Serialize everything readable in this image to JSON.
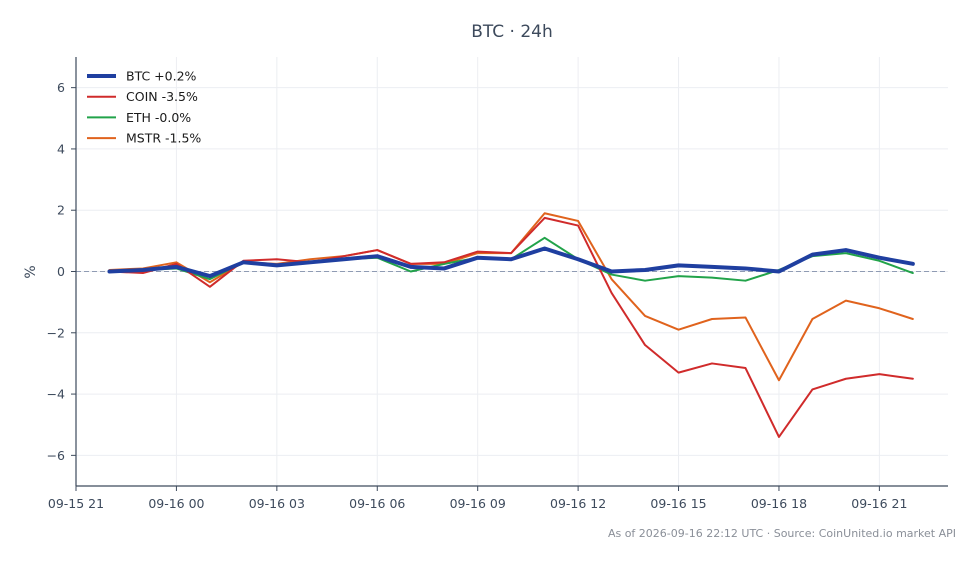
{
  "chart_data": {
    "type": "line",
    "title": "BTC · 24h",
    "xlabel": "",
    "ylabel": "%",
    "x_tick_labels": [
      "09-15 21",
      "09-16 00",
      "09-16 03",
      "09-16 06",
      "09-16 09",
      "09-16 12",
      "09-16 15",
      "09-16 18",
      "09-16 21"
    ],
    "x_tick_positions": [
      0,
      3,
      6,
      9,
      12,
      15,
      18,
      21,
      24
    ],
    "xlim": [
      0,
      26.05
    ],
    "ylim": [
      -7,
      7
    ],
    "y_ticks": [
      -6,
      -4,
      -2,
      0,
      2,
      4,
      6
    ],
    "y_tick_labels": [
      "−6",
      "−4",
      "−2",
      "0",
      "2",
      "4",
      "6"
    ],
    "x": [
      1,
      2,
      3,
      4,
      5,
      6,
      7,
      8,
      9,
      10,
      11,
      12,
      13,
      14,
      15,
      16,
      17,
      18,
      19,
      20,
      21,
      22,
      23,
      24,
      25
    ],
    "grid": true,
    "zero_line": true,
    "legend_position": "top-left",
    "series": [
      {
        "name": "BTC +0.2%",
        "color": "#1f3fa0",
        "width": 4,
        "values": [
          0.0,
          0.05,
          0.15,
          -0.15,
          0.3,
          0.2,
          0.3,
          0.4,
          0.5,
          0.15,
          0.1,
          0.45,
          0.4,
          0.75,
          0.4,
          0.0,
          0.05,
          0.2,
          0.15,
          0.1,
          0.0,
          0.55,
          0.7,
          0.45,
          0.25
        ]
      },
      {
        "name": "COIN -3.5%",
        "color": "#d02b2b",
        "width": 2,
        "values": [
          0.0,
          -0.05,
          0.25,
          -0.5,
          0.35,
          0.4,
          0.3,
          0.5,
          0.7,
          0.25,
          0.3,
          0.65,
          0.6,
          1.75,
          1.5,
          -0.7,
          -2.4,
          -3.3,
          -3.0,
          -3.15,
          -5.4,
          -3.85,
          -3.5,
          -3.35,
          -3.5
        ]
      },
      {
        "name": "ETH -0.0%",
        "color": "#22a34a",
        "width": 2,
        "values": [
          0.0,
          0.05,
          0.1,
          -0.25,
          0.3,
          0.2,
          0.3,
          0.4,
          0.45,
          0.0,
          0.25,
          0.45,
          0.4,
          1.1,
          0.4,
          -0.1,
          -0.3,
          -0.15,
          -0.2,
          -0.3,
          0.05,
          0.5,
          0.6,
          0.35,
          -0.05
        ]
      },
      {
        "name": "MSTR -1.5%",
        "color": "#e0631d",
        "width": 2,
        "values": [
          0.05,
          0.1,
          0.3,
          -0.35,
          0.3,
          0.25,
          0.4,
          0.5,
          0.7,
          0.25,
          0.25,
          0.6,
          0.6,
          1.9,
          1.65,
          -0.25,
          -1.45,
          -1.9,
          -1.55,
          -1.5,
          -3.55,
          -1.55,
          -0.95,
          -1.2,
          -1.55
        ]
      }
    ],
    "footer": "As of 2026-09-16 22:12 UTC · Source: CoinUnited.io market API"
  }
}
